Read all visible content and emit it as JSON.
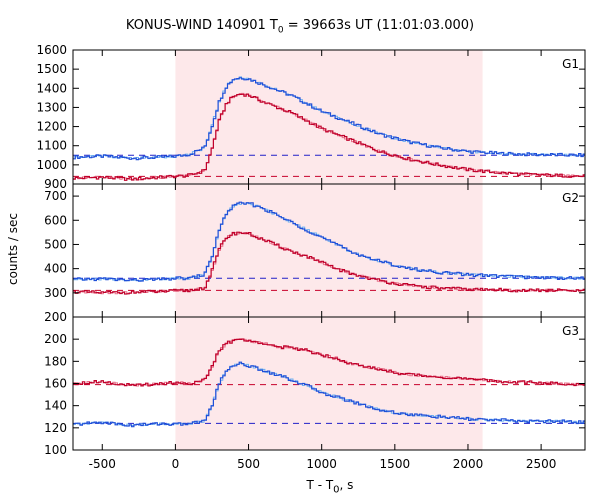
{
  "chart_data": {
    "type": "line",
    "title_prefix": "KONUS-WIND 140901 T",
    "title_subscript": "0",
    "title_suffix": " = 39663s UT (11:01:03.000)",
    "xlabel": "T - T",
    "xlabel_subscript": "0",
    "xlabel_suffix": ", s",
    "ylabel": "counts / sec",
    "xlim": [
      -700,
      2800
    ],
    "xticks": [
      -500,
      0,
      500,
      1000,
      1500,
      2000,
      2500
    ],
    "shaded_interval": [
      0,
      2100
    ],
    "colors": {
      "shade": "#fde8ea",
      "high_energy": "#1f4fd8",
      "high_energy_light": "#6fb0f0",
      "low_energy": "#c0002a",
      "low_energy_light": "#e8708a",
      "baseline_blue": "#2020c8",
      "baseline_red": "#c8002a"
    },
    "panels": [
      {
        "label": "G1",
        "ylim": [
          900,
          1600
        ],
        "yticks": [
          900,
          1000,
          1100,
          1200,
          1300,
          1400,
          1500,
          1600
        ],
        "baseline_blue": 1050,
        "baseline_red": 940,
        "series": [
          {
            "color_key": "high_energy",
            "x": [
              -700,
              -500,
              -300,
              -100,
              0,
              100,
              200,
              250,
              300,
              350,
              400,
              450,
              500,
              600,
              700,
              800,
              900,
              1000,
              1100,
              1200,
              1300,
              1400,
              1500,
              1600,
              1800,
              2000,
              2200,
              2400,
              2600,
              2800
            ],
            "y": [
              1040,
              1045,
              1035,
              1040,
              1045,
              1055,
              1090,
              1200,
              1330,
              1410,
              1450,
              1455,
              1450,
              1420,
              1390,
              1360,
              1320,
              1280,
              1250,
              1220,
              1190,
              1160,
              1140,
              1120,
              1090,
              1070,
              1060,
              1055,
              1052,
              1050
            ]
          },
          {
            "color_key": "low_energy",
            "x": [
              -700,
              -500,
              -300,
              -100,
              0,
              100,
              200,
              250,
              300,
              350,
              400,
              450,
              500,
              600,
              700,
              800,
              900,
              1000,
              1100,
              1200,
              1300,
              1400,
              1500,
              1600,
              1800,
              2000,
              2200,
              2400,
              2600,
              2800
            ],
            "y": [
              930,
              935,
              925,
              935,
              940,
              945,
              970,
              1080,
              1230,
              1320,
              1360,
              1370,
              1365,
              1330,
              1300,
              1270,
              1230,
              1190,
              1160,
              1130,
              1100,
              1070,
              1050,
              1030,
              1000,
              975,
              960,
              950,
              945,
              940
            ]
          }
        ]
      },
      {
        "label": "G2",
        "ylim": [
          200,
          750
        ],
        "yticks": [
          200,
          300,
          400,
          500,
          600,
          700
        ],
        "baseline_blue": 360,
        "baseline_red": 310,
        "series": [
          {
            "color_key": "high_energy",
            "x": [
              -700,
              -500,
              -300,
              -100,
              0,
              100,
              200,
              250,
              300,
              350,
              400,
              450,
              500,
              600,
              700,
              800,
              900,
              1000,
              1100,
              1200,
              1300,
              1400,
              1500,
              1600,
              1800,
              2000,
              2200,
              2400,
              2600,
              2800
            ],
            "y": [
              355,
              358,
              352,
              355,
              360,
              360,
              375,
              450,
              560,
              630,
              660,
              670,
              670,
              650,
              620,
              590,
              560,
              530,
              500,
              470,
              450,
              430,
              415,
              400,
              385,
              375,
              370,
              365,
              362,
              360
            ]
          },
          {
            "color_key": "low_energy",
            "x": [
              -700,
              -500,
              -300,
              -100,
              0,
              100,
              200,
              250,
              300,
              350,
              400,
              450,
              500,
              600,
              700,
              800,
              900,
              1000,
              1100,
              1200,
              1300,
              1400,
              1500,
              1600,
              1800,
              2000,
              2200,
              2400,
              2600,
              2800
            ],
            "y": [
              305,
              300,
              302,
              305,
              308,
              310,
              320,
              390,
              480,
              530,
              545,
              550,
              545,
              520,
              495,
              470,
              450,
              425,
              400,
              380,
              365,
              350,
              340,
              330,
              320,
              315,
              312,
              310,
              310,
              308
            ]
          }
        ]
      },
      {
        "label": "G3",
        "ylim": [
          100,
          220
        ],
        "yticks": [
          100,
          120,
          140,
          160,
          180,
          200
        ],
        "baseline_blue": 124,
        "baseline_red": 159,
        "series": [
          {
            "color_key": "low_energy",
            "x": [
              -700,
              -500,
              -300,
              -100,
              0,
              100,
              200,
              250,
              300,
              350,
              400,
              450,
              500,
              600,
              700,
              800,
              900,
              1000,
              1100,
              1200,
              1300,
              1400,
              1500,
              1600,
              1800,
              2000,
              2200,
              2400,
              2600,
              2800
            ],
            "y": [
              160,
              162,
              158,
              160,
              161,
              160,
              163,
              175,
              190,
              196,
              199,
              200,
              198,
              197,
              193,
              192,
              190,
              186,
              183,
              178,
              175,
              173,
              170,
              168,
              166,
              164,
              162,
              161,
              160,
              159
            ]
          },
          {
            "color_key": "high_energy",
            "x": [
              -700,
              -500,
              -300,
              -100,
              0,
              100,
              200,
              250,
              300,
              350,
              400,
              450,
              500,
              600,
              700,
              800,
              900,
              1000,
              1100,
              1200,
              1300,
              1400,
              1500,
              1600,
              1800,
              2000,
              2200,
              2400,
              2600,
              2800
            ],
            "y": [
              123,
              125,
              122,
              124,
              123,
              124,
              126,
              140,
              160,
              172,
              177,
              178,
              176,
              172,
              168,
              163,
              158,
              152,
              148,
              144,
              140,
              136,
              134,
              132,
              130,
              128,
              127,
              126,
              126,
              125
            ]
          }
        ]
      }
    ]
  }
}
